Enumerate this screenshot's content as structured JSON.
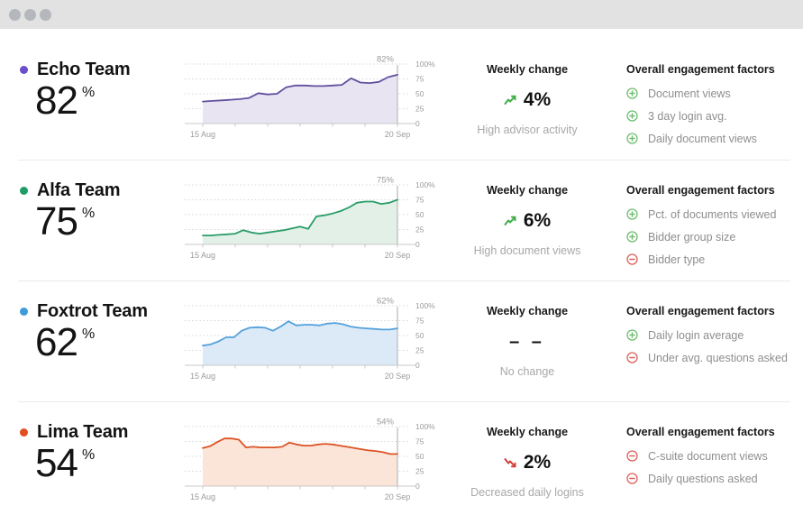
{
  "window": {
    "titlebar_dot_count": 3
  },
  "labels": {
    "weekly_change": "Weekly change",
    "factors": "Overall engagement factors"
  },
  "axis": {
    "x_start": "15 Aug",
    "x_end": "20 Sep"
  },
  "colors": {
    "trend_up": "#42ae4a",
    "trend_down": "#d2403a",
    "plus_icon": "#6fbf70",
    "minus_icon": "#de625a"
  },
  "teams": [
    {
      "name": "Echo Team",
      "score": "82",
      "score_suffix": "%",
      "dot_color": "#6b4ec9",
      "line_color": "#61509e",
      "fill_color": "#e8e4f2",
      "weekly": {
        "direction": "up",
        "value": "4%",
        "note": "High advisor activity"
      },
      "factors": [
        {
          "type": "plus",
          "label": "Document views"
        },
        {
          "type": "plus",
          "label": "3 day login avg."
        },
        {
          "type": "plus",
          "label": "Daily document views"
        }
      ]
    },
    {
      "name": "Alfa Team",
      "score": "75",
      "score_suffix": "%",
      "dot_color": "#1f9d64",
      "line_color": "#2a9d68",
      "fill_color": "#e2f0e8",
      "weekly": {
        "direction": "up",
        "value": "6%",
        "note": "High document views"
      },
      "factors": [
        {
          "type": "plus",
          "label": "Pct. of documents viewed"
        },
        {
          "type": "plus",
          "label": "Bidder group size"
        },
        {
          "type": "minus",
          "label": "Bidder type"
        }
      ]
    },
    {
      "name": "Foxtrot Team",
      "score": "62",
      "score_suffix": "%",
      "dot_color": "#3d9bdb",
      "line_color": "#54a1dc",
      "fill_color": "#dceaf8",
      "weekly": {
        "direction": "flat",
        "value": "– –",
        "note": "No change"
      },
      "factors": [
        {
          "type": "plus",
          "label": "Daily login average"
        },
        {
          "type": "minus",
          "label": "Under avg. questions asked"
        }
      ]
    },
    {
      "name": "Lima Team",
      "score": "54",
      "score_suffix": "%",
      "dot_color": "#e04f1f",
      "line_color": "#dc5426",
      "fill_color": "#fbe5d8",
      "weekly": {
        "direction": "down",
        "value": "2%",
        "note": "Decreased daily logins"
      },
      "factors": [
        {
          "type": "minus",
          "label": "C-suite document views"
        },
        {
          "type": "minus",
          "label": "Daily questions asked"
        }
      ]
    }
  ],
  "chart_data": [
    {
      "type": "area",
      "team": "Echo Team",
      "title": "Engagement over time",
      "x_range": [
        "15 Aug",
        "20 Sep"
      ],
      "ylim": [
        0,
        100
      ],
      "y_ticks": [
        "100%",
        "75",
        "50",
        "25",
        "0"
      ],
      "end_value_label": "82%",
      "values": [
        37,
        38,
        39,
        40,
        41,
        43,
        51,
        49,
        50,
        61,
        64,
        64,
        63,
        63,
        64,
        65,
        76,
        69,
        68,
        70,
        78,
        82
      ]
    },
    {
      "type": "area",
      "team": "Alfa Team",
      "title": "Engagement over time",
      "x_range": [
        "15 Aug",
        "20 Sep"
      ],
      "ylim": [
        0,
        100
      ],
      "y_ticks": [
        "100%",
        "75",
        "50",
        "25",
        "0"
      ],
      "end_value_label": "75%",
      "values": [
        15,
        15,
        16,
        17,
        18,
        24,
        20,
        18,
        20,
        22,
        24,
        27,
        30,
        26,
        47,
        49,
        52,
        56,
        62,
        70,
        72,
        72,
        68,
        70,
        75
      ]
    },
    {
      "type": "area",
      "team": "Foxtrot Team",
      "title": "Engagement over time",
      "x_range": [
        "15 Aug",
        "20 Sep"
      ],
      "ylim": [
        0,
        100
      ],
      "y_ticks": [
        "100%",
        "75",
        "50",
        "25",
        "0"
      ],
      "end_value_label": "62%",
      "values": [
        33,
        35,
        40,
        47,
        47,
        58,
        63,
        64,
        63,
        58,
        65,
        74,
        67,
        68,
        68,
        67,
        70,
        71,
        69,
        65,
        63,
        62,
        61,
        60,
        60,
        62
      ]
    },
    {
      "type": "area",
      "team": "Lima Team",
      "title": "Engagement over time",
      "x_range": [
        "15 Aug",
        "20 Sep"
      ],
      "ylim": [
        0,
        100
      ],
      "y_ticks": [
        "100%",
        "75",
        "50",
        "25",
        "0"
      ],
      "end_value_label": "54%",
      "values": [
        64,
        67,
        74,
        80,
        80,
        78,
        65,
        66,
        65,
        65,
        65,
        66,
        73,
        70,
        68,
        68,
        70,
        71,
        70,
        68,
        66,
        64,
        62,
        60,
        59,
        57,
        54,
        54
      ]
    }
  ]
}
